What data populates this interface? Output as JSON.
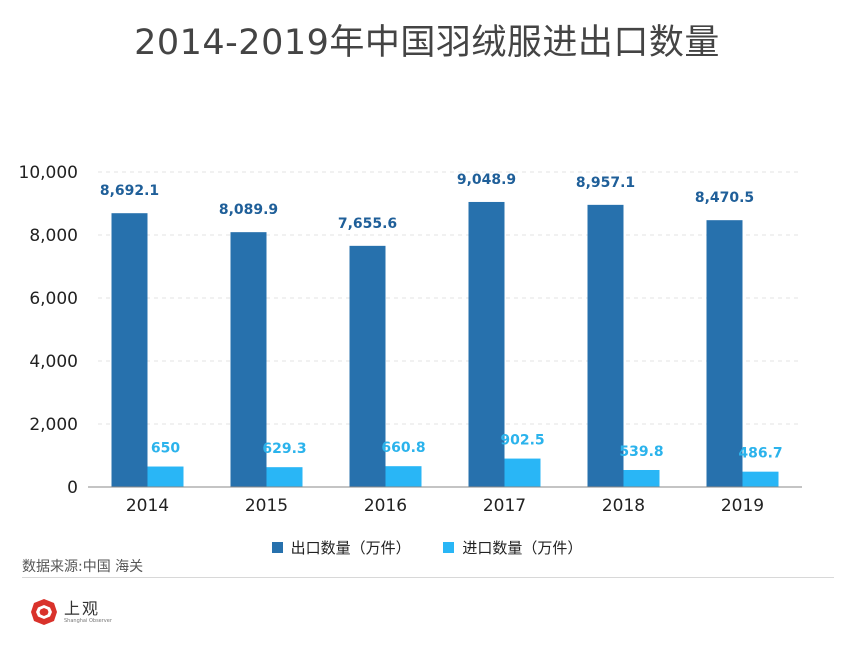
{
  "title": "2014-2019年中国羽绒服进出口数量",
  "source": "数据来源:中国 海关",
  "logo": {
    "cn": "上观",
    "en": "Shanghai Observer"
  },
  "colors": {
    "export": "#2771ad",
    "import": "#29b6f6",
    "export_label": "#1f5f99",
    "import_label": "#2bb3ec"
  },
  "chart_data": {
    "type": "bar",
    "title": "2014-2019年中国羽绒服进出口数量",
    "xlabel": "",
    "ylabel": "",
    "ylim": [
      0,
      10000
    ],
    "yticks": [
      0,
      2000,
      4000,
      6000,
      8000,
      10000
    ],
    "ytick_labels": [
      "0",
      "2,000",
      "4,000",
      "6,000",
      "8,000",
      "10,000"
    ],
    "grid": true,
    "legend_position": "bottom",
    "categories": [
      "2014",
      "2015",
      "2016",
      "2017",
      "2018",
      "2019"
    ],
    "series": [
      {
        "name": "出口数量（万件）",
        "values": [
          8692.1,
          8089.9,
          7655.6,
          9048.9,
          8957.1,
          8470.5
        ],
        "labels": [
          "8,692.1",
          "8,089.9",
          "7,655.6",
          "9,048.9",
          "8,957.1",
          "8,470.5"
        ]
      },
      {
        "name": "进口数量（万件）",
        "values": [
          650,
          629.3,
          660.8,
          902.5,
          539.8,
          486.7
        ],
        "labels": [
          "650",
          "629.3",
          "660.8",
          "902.5",
          "539.8",
          "486.7"
        ]
      }
    ]
  }
}
